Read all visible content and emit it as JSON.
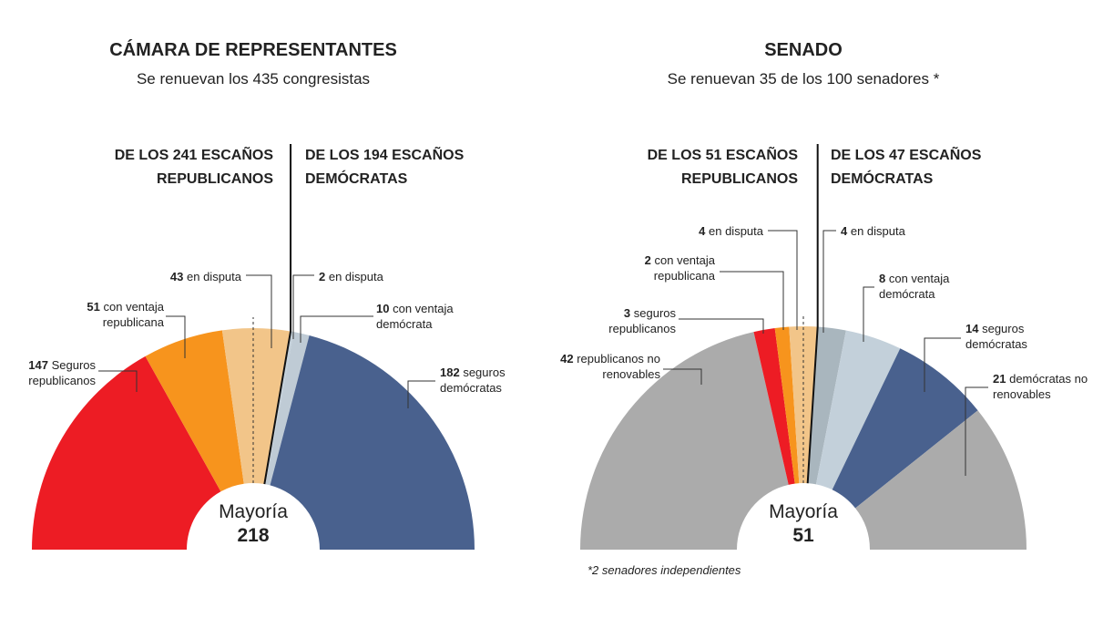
{
  "chart_data": [
    {
      "type": "half-donut",
      "title": "CÁMARA DE REPRESENTANTES",
      "subtitle": "Se renuevan los 435 congresistas",
      "left_header": "DE LOS 241 ESCAÑOS REPUBLICANOS",
      "right_header": "DE LOS 194 ESCAÑOS DEMÓCRATAS",
      "categories": [
        "Seguros republicanos",
        "con ventaja republicana",
        "en disputa",
        "en disputa",
        "con ventaja demócrata",
        "seguros demócratas"
      ],
      "values": [
        147,
        51,
        43,
        2,
        10,
        182
      ],
      "colors": [
        "#ed1c24",
        "#f7941d",
        "#f2c589",
        "#c3d0da",
        "#bfcbd5",
        "#49618e"
      ],
      "center_label": "Mayoría",
      "center_value": 218
    },
    {
      "type": "half-donut",
      "title": "SENADO",
      "subtitle": "Se renuevan 35 de los 100 senadores *",
      "left_header": "DE LOS 51 ESCAÑOS REPUBLICANOS",
      "right_header": "DE LOS 47 ESCAÑOS DEMÓCRATAS",
      "categories": [
        "republicanos no renovables",
        "seguros republicanos",
        "con ventaja republicana",
        "en disputa",
        "en disputa",
        "con ventaja demócrata",
        "seguros demócratas",
        "demócratas no renovables"
      ],
      "values": [
        42,
        3,
        2,
        4,
        4,
        8,
        14,
        21
      ],
      "colors": [
        "#ababab",
        "#ed1c24",
        "#f7941d",
        "#f2c589",
        "#a9b6be",
        "#c3d0da",
        "#49618e",
        "#ababab"
      ],
      "center_label": "Mayoría",
      "center_value": 51,
      "footnote": "*2 senadores independientes"
    }
  ]
}
